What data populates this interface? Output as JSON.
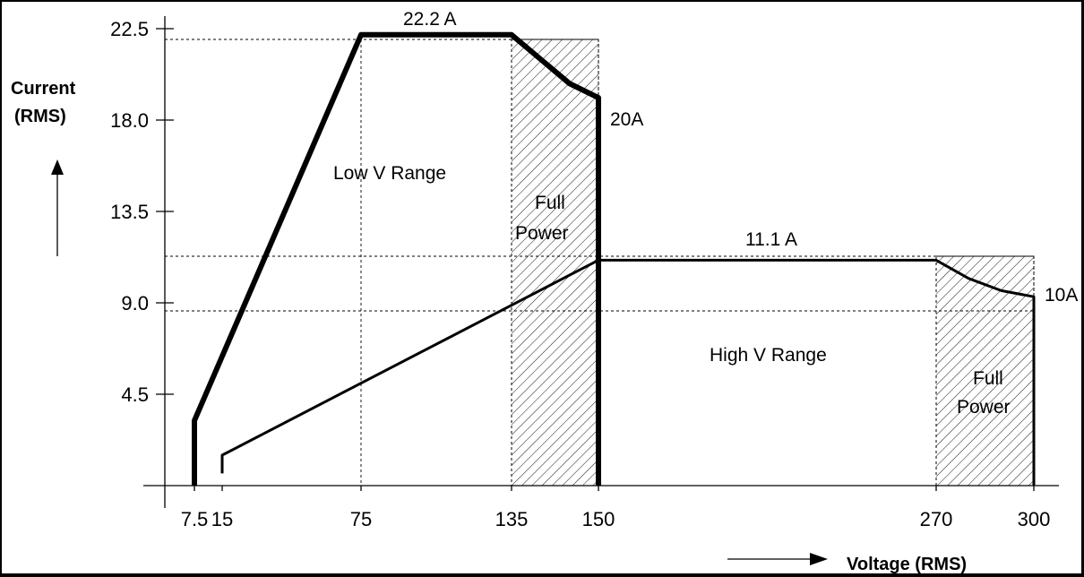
{
  "chart_data": {
    "type": "line",
    "xlabel": "Voltage (RMS)",
    "ylabel_line1": "Current",
    "ylabel_line2": "(RMS)",
    "x_ticks": [
      7.5,
      15,
      75,
      135,
      150,
      270,
      300
    ],
    "x_tick_labels": [
      "7.5",
      "15",
      "75",
      "135",
      "150",
      "270",
      "300"
    ],
    "y_ticks": [
      4.5,
      9.0,
      13.5,
      18.0,
      22.5
    ],
    "y_tick_labels": [
      "4.5",
      "9.0",
      "13.5",
      "18.0",
      "22.5"
    ],
    "xlim": [
      7.5,
      300
    ],
    "ylim": [
      0,
      22.5
    ],
    "grid": "dashed reference lines at 22.2 A and 11.1 A",
    "series": [
      {
        "name": "Low V Range",
        "points": [
          [
            7.5,
            0
          ],
          [
            7.5,
            3.2
          ],
          [
            75,
            22.2
          ],
          [
            135,
            22.2
          ],
          [
            140,
            21.0
          ],
          [
            145,
            19.8
          ],
          [
            150,
            19.1
          ],
          [
            150,
            0
          ]
        ],
        "color": "#000000"
      },
      {
        "name": "High V Range",
        "points": [
          [
            15,
            0.6
          ],
          [
            15,
            1.5
          ],
          [
            150,
            11.1
          ],
          [
            270,
            11.1
          ],
          [
            280,
            10.2
          ],
          [
            290,
            9.6
          ],
          [
            300,
            9.3
          ],
          [
            300,
            0
          ]
        ],
        "color": "#000000"
      }
    ],
    "regions": [
      {
        "label_line1": "Full",
        "label_line2": "Power",
        "x_range": [
          135,
          150
        ],
        "pattern": "hatched"
      },
      {
        "label_line1": "Full",
        "label_line2": "Power",
        "x_range": [
          270,
          300
        ],
        "pattern": "hatched"
      }
    ],
    "region_labels": {
      "low": "Low V Range",
      "high": "High V Range"
    },
    "annotations": [
      {
        "text": "22.2 A"
      },
      {
        "text": "20A"
      },
      {
        "text": "11.1 A"
      },
      {
        "text": "10A"
      }
    ]
  }
}
